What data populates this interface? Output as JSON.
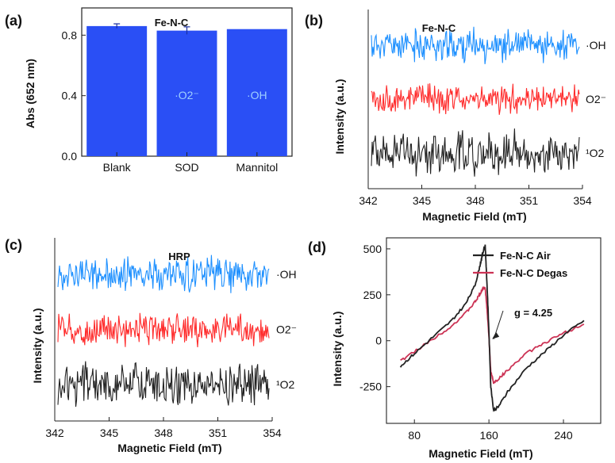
{
  "chart_data": [
    {
      "panel": "(a)",
      "type": "bar",
      "title": "Fe-N-C",
      "ylabel": "Abs (652 nm)",
      "xlabel": "",
      "categories": [
        "Blank",
        "SOD",
        "Mannitol"
      ],
      "values": [
        0.86,
        0.83,
        0.84
      ],
      "errors": [
        0.015,
        0.025,
        0.0
      ],
      "bar_labels": [
        "",
        "·O2⁻",
        "·OH"
      ],
      "ylim": [
        0,
        0.98
      ],
      "yticks": [
        "0.0",
        "0.4",
        "0.8"
      ],
      "bar_color": "#2a4ff5",
      "label_color": "#9fd0ff"
    },
    {
      "panel": "(b)",
      "type": "line",
      "title": "Fe-N-C",
      "xlabel": "Magnetic Field (mT)",
      "ylabel": "Intensity (a.u.)",
      "xlim": [
        342,
        354
      ],
      "xticks": [
        "342",
        "345",
        "348",
        "351",
        "354"
      ],
      "series": [
        {
          "label": "·OH",
          "color": "#1e90ff",
          "level": 0.8,
          "noise": 0.06
        },
        {
          "label": "O2⁻",
          "color": "#ff2b2b",
          "level": 0.5,
          "noise": 0.055
        },
        {
          "label": "¹O2",
          "color": "#222222",
          "level": 0.2,
          "noise": 0.08
        }
      ]
    },
    {
      "panel": "(c)",
      "type": "line",
      "title": "HRP",
      "xlabel": "Magnetic Field (mT)",
      "ylabel": "Intensity (a.u.)",
      "xlim": [
        342,
        354
      ],
      "xticks": [
        "342",
        "345",
        "348",
        "351",
        "354"
      ],
      "series": [
        {
          "label": "·OH",
          "color": "#1e90ff",
          "level": 0.8,
          "noise": 0.06
        },
        {
          "label": "O2⁻",
          "color": "#ff2b2b",
          "level": 0.5,
          "noise": 0.055
        },
        {
          "label": "¹O2",
          "color": "#222222",
          "level": 0.2,
          "noise": 0.08
        }
      ]
    },
    {
      "panel": "(d)",
      "type": "line",
      "xlabel": "Magnetic Field (mT)",
      "ylabel": "Intensity (a.u.)",
      "xlim": [
        50,
        280
      ],
      "ylim": [
        -450,
        560
      ],
      "xticks": [
        "80",
        "160",
        "240"
      ],
      "yticks": [
        "500",
        "250",
        "0",
        "-250"
      ],
      "annotation": "g = 4.25",
      "annotation_target": [
        160,
        0
      ],
      "legend_position": "top-right",
      "series": [
        {
          "name": "Fe-N-C Air",
          "color": "#222222",
          "x": [
            65,
            80,
            100,
            120,
            135,
            145,
            150,
            153,
            156,
            158,
            160,
            162,
            165,
            170,
            180,
            200,
            220,
            240,
            262
          ],
          "y": [
            -140,
            -70,
            20,
            110,
            200,
            300,
            400,
            470,
            520,
            300,
            50,
            -250,
            -380,
            -360,
            -280,
            -150,
            -60,
            30,
            110
          ]
        },
        {
          "name": "Fe-N-C Degas",
          "color": "#cc3355",
          "x": [
            65,
            80,
            100,
            120,
            135,
            145,
            150,
            153,
            156,
            158,
            160,
            162,
            165,
            170,
            180,
            200,
            220,
            240,
            262
          ],
          "y": [
            -110,
            -60,
            10,
            80,
            150,
            210,
            250,
            280,
            290,
            170,
            20,
            -170,
            -230,
            -210,
            -160,
            -70,
            -10,
            40,
            90
          ]
        }
      ]
    }
  ]
}
